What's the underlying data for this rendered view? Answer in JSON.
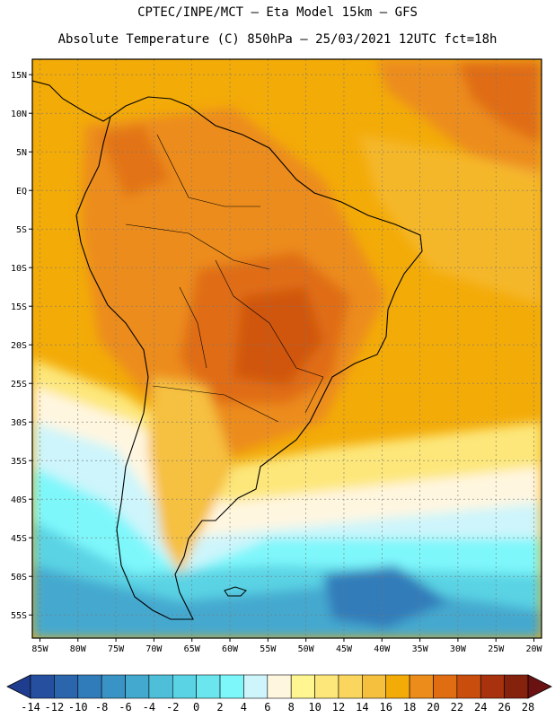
{
  "header": {
    "title_line1": "CPTEC/INPE/MCT –  Eta Model 15km – GFS",
    "title_line2": "Absolute Temperature (C) 850hPa – 25/03/2021 12UTC fct=18h"
  },
  "map": {
    "lon_range": [
      -86,
      -19
    ],
    "lat_range": [
      -58,
      17
    ],
    "lon_ticks": [
      {
        "value": -85,
        "label": "85W"
      },
      {
        "value": -80,
        "label": "80W"
      },
      {
        "value": -75,
        "label": "75W"
      },
      {
        "value": -70,
        "label": "70W"
      },
      {
        "value": -65,
        "label": "65W"
      },
      {
        "value": -60,
        "label": "60W"
      },
      {
        "value": -55,
        "label": "55W"
      },
      {
        "value": -50,
        "label": "50W"
      },
      {
        "value": -45,
        "label": "45W"
      },
      {
        "value": -40,
        "label": "40W"
      },
      {
        "value": -35,
        "label": "35W"
      },
      {
        "value": -30,
        "label": "30W"
      },
      {
        "value": -25,
        "label": "25W"
      },
      {
        "value": -20,
        "label": "20W"
      }
    ],
    "lat_ticks": [
      {
        "value": 15,
        "label": "15N"
      },
      {
        "value": 10,
        "label": "10N"
      },
      {
        "value": 5,
        "label": "5N"
      },
      {
        "value": 0,
        "label": "EQ"
      },
      {
        "value": -5,
        "label": "5S"
      },
      {
        "value": -10,
        "label": "10S"
      },
      {
        "value": -15,
        "label": "15S"
      },
      {
        "value": -20,
        "label": "20S"
      },
      {
        "value": -25,
        "label": "25S"
      },
      {
        "value": -30,
        "label": "30S"
      },
      {
        "value": -35,
        "label": "35S"
      },
      {
        "value": -40,
        "label": "40S"
      },
      {
        "value": -45,
        "label": "45S"
      },
      {
        "value": -50,
        "label": "50S"
      },
      {
        "value": -55,
        "label": "55S"
      }
    ],
    "grid": "dashed"
  },
  "colorbar": {
    "labels": [
      "-14",
      "-12",
      "-10",
      "-8",
      "-6",
      "-4",
      "-2",
      "0",
      "2",
      "4",
      "6",
      "8",
      "10",
      "12",
      "14",
      "16",
      "18",
      "20",
      "22",
      "24",
      "26",
      "28"
    ],
    "bins": [
      {
        "range": "-16..-14",
        "color": "#1f3d8f"
      },
      {
        "range": "-14..-12",
        "color": "#26509f"
      },
      {
        "range": "-12..-10",
        "color": "#2b66ad"
      },
      {
        "range": "-10..-8",
        "color": "#307cba"
      },
      {
        "range": "-8..-6",
        "color": "#3a93c5"
      },
      {
        "range": "-6..-4",
        "color": "#44a9cf"
      },
      {
        "range": "-4..-2",
        "color": "#4fbfd9"
      },
      {
        "range": "-2..0",
        "color": "#5ad3e4"
      },
      {
        "range": "0..2",
        "color": "#6be6ef"
      },
      {
        "range": "2..4",
        "color": "#7ef7fb"
      },
      {
        "range": "4..6",
        "color": "#cdf5fb"
      },
      {
        "range": "6..8",
        "color": "#fff6e0"
      },
      {
        "range": "8..10",
        "color": "#fff691"
      },
      {
        "range": "10..12",
        "color": "#fde77a"
      },
      {
        "range": "12..14",
        "color": "#fad65e"
      },
      {
        "range": "14..16",
        "color": "#f6c03f"
      },
      {
        "range": "16..18",
        "color": "#f3ab08"
      },
      {
        "range": "18..20",
        "color": "#ec8c1b"
      },
      {
        "range": "20..22",
        "color": "#e06d12"
      },
      {
        "range": "22..24",
        "color": "#c94e0e"
      },
      {
        "range": "24..26",
        "color": "#a7320d"
      },
      {
        "range": "26..28",
        "color": "#85220e"
      },
      {
        "range": "28..30",
        "color": "#6a1212"
      }
    ]
  }
}
